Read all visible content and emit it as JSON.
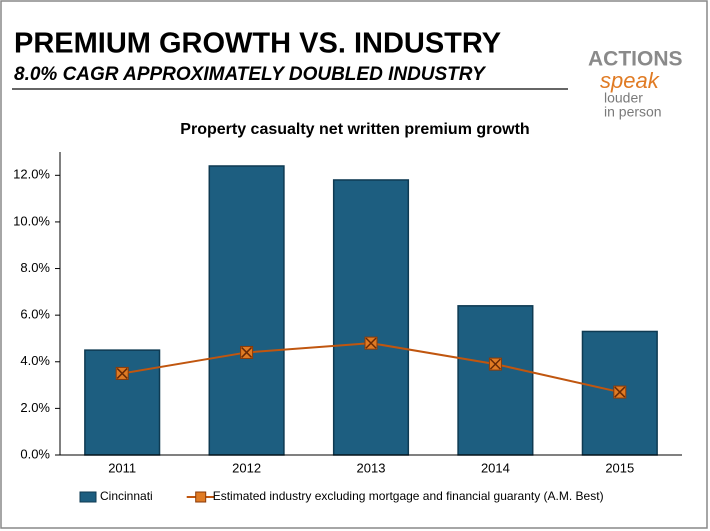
{
  "header": {
    "title": "PREMIUM GROWTH VS. INDUSTRY",
    "subtitle": "8.0% CAGR APPROXIMATELY DOUBLED INDUSTRY"
  },
  "logo": {
    "line1": "ACTIONS",
    "line2": "speak",
    "line3": "louder",
    "line4": "in person"
  },
  "chart_data": {
    "type": "bar",
    "title": "Property casualty net written premium growth",
    "categories": [
      "2011",
      "2012",
      "2013",
      "2014",
      "2015"
    ],
    "series": [
      {
        "name": "Cincinnati",
        "type": "bar",
        "color": "#1d5e80",
        "values": [
          4.5,
          12.4,
          11.8,
          6.4,
          5.3
        ]
      },
      {
        "name": "Estimated industry excluding mortgage and financial guaranty (A.M. Best)",
        "type": "line",
        "color": "#c0560f",
        "values": [
          3.5,
          4.4,
          4.8,
          3.9,
          2.7
        ]
      }
    ],
    "ylim": [
      0,
      13
    ],
    "yticks": [
      {
        "value": 0,
        "label": "0.0%"
      },
      {
        "value": 2,
        "label": "2.0%"
      },
      {
        "value": 4,
        "label": "4.0%"
      },
      {
        "value": 6,
        "label": "6.0%"
      },
      {
        "value": 8,
        "label": "8.0%"
      },
      {
        "value": 10,
        "label": "10.0%"
      },
      {
        "value": 12,
        "label": "12.0%"
      }
    ],
    "grid": false,
    "legend": "bottom"
  }
}
